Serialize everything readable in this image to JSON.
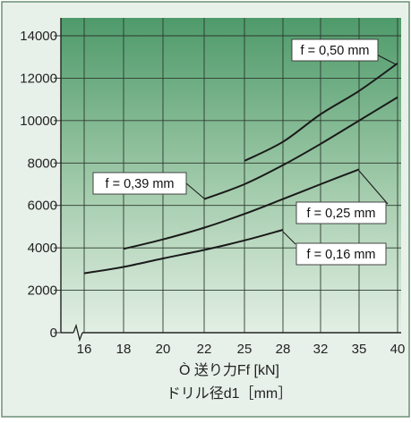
{
  "chart_data": {
    "type": "line",
    "title": "",
    "xlabel_line1": "Ò 送り力Ff [kN]",
    "xlabel_line2": "ドリル径d1［mm］",
    "ylabel": "",
    "x_ticks": [
      "16",
      "18",
      "20",
      "22",
      "25",
      "28",
      "32",
      "35",
      "40"
    ],
    "y_ticks": [
      "0",
      "2000",
      "4000",
      "6000",
      "8000",
      "10000",
      "12000",
      "14000"
    ],
    "ylim": [
      0,
      14500
    ],
    "axis_break": true,
    "grid": true,
    "legend": "inline callouts",
    "series": [
      {
        "name": "f = 0,50 mm",
        "x": [
          "25",
          "28",
          "32",
          "35",
          "40"
        ],
        "y": [
          8100,
          9000,
          10300,
          11400,
          12700
        ]
      },
      {
        "name": "f = 0,39 mm",
        "x": [
          "22",
          "25",
          "28",
          "32",
          "35",
          "40"
        ],
        "y": [
          6300,
          7000,
          7900,
          8900,
          10000,
          11100
        ]
      },
      {
        "name": "f = 0,25 mm",
        "x": [
          "18",
          "20",
          "22",
          "25",
          "28",
          "32",
          "35"
        ],
        "y": [
          3950,
          4400,
          4950,
          5600,
          6300,
          7000,
          7700
        ]
      },
      {
        "name": "f = 0,16 mm",
        "x": [
          "16",
          "18",
          "20",
          "22",
          "25",
          "28"
        ],
        "y": [
          2800,
          3100,
          3500,
          3900,
          4350,
          4850
        ]
      }
    ]
  },
  "colors": {
    "page_background": "#e8f1e9",
    "plot_gradient_top": "#4e9a6a",
    "plot_gradient_bottom": "#e3efe4",
    "grid_line": "#2c3a2f",
    "curve": "#1a1a1a",
    "frame": "#6d8f76",
    "callout_fill": "#ffffff"
  }
}
